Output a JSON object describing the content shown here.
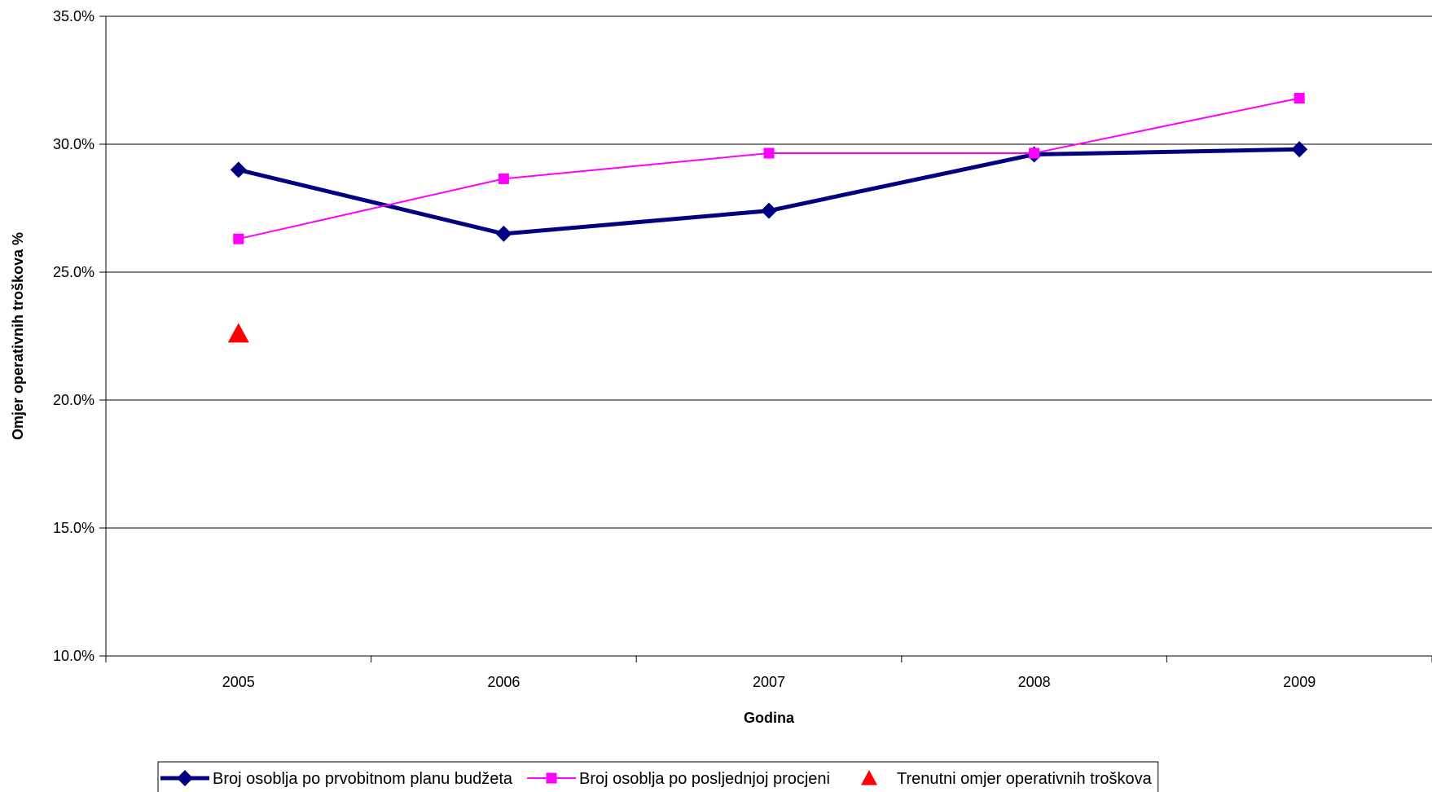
{
  "chart_data": {
    "type": "line",
    "title": "",
    "xlabel": "Godina",
    "ylabel": "Omjer operativnih troškova %",
    "categories": [
      "2005",
      "2006",
      "2007",
      "2008",
      "2009"
    ],
    "ylim": [
      10.0,
      35.0
    ],
    "yticks": [
      10.0,
      15.0,
      20.0,
      25.0,
      30.0,
      35.0
    ],
    "ytick_labels": [
      "10.0%",
      "15.0%",
      "20.0%",
      "25.0%",
      "30.0%",
      "35.0%"
    ],
    "grid": true,
    "legend_position": "bottom",
    "series": [
      {
        "name": "Broj osoblja po prvobitnom planu budžeta",
        "values": [
          29.0,
          26.5,
          27.4,
          29.6,
          29.8
        ],
        "color": "#000080",
        "marker": "diamond",
        "line": true
      },
      {
        "name": "Broj osoblja po posljednjoj procjeni",
        "values": [
          26.3,
          28.65,
          29.65,
          29.65,
          31.8
        ],
        "color": "#FF00FF",
        "marker": "square",
        "line": true
      },
      {
        "name": "Trenutni omjer operativnih troškova",
        "values": [
          22.6,
          null,
          null,
          null,
          null
        ],
        "color": "#FF0000",
        "marker": "triangle",
        "line": false
      }
    ]
  }
}
